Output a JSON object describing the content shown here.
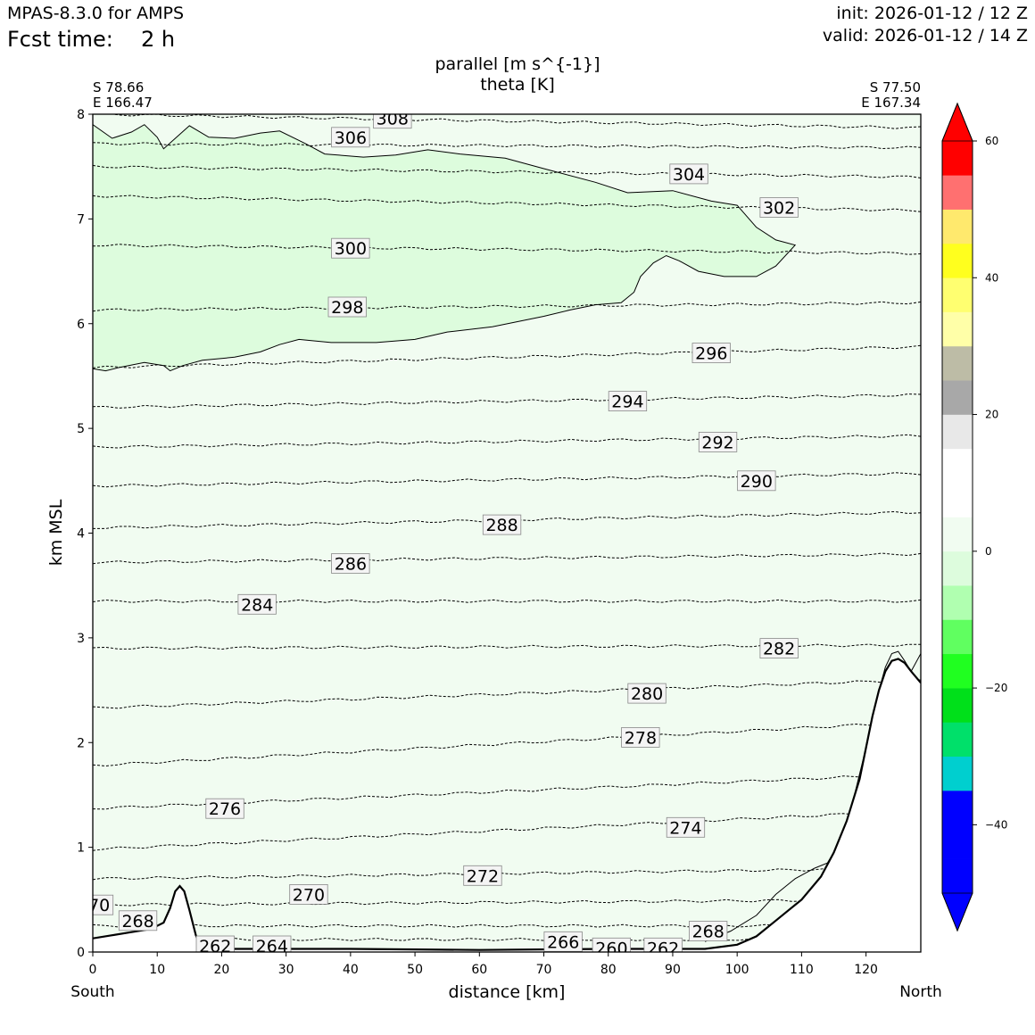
{
  "header": {
    "model": "MPAS-8.3.0 for AMPS",
    "fcst_label": "Fcst time:",
    "fcst_value": "2 h",
    "init": "init: 2026-01-12 / 12 Z",
    "valid": "valid: 2026-01-12 / 14 Z"
  },
  "chart_data": {
    "type": "contour",
    "title": "parallel [m s^{-1}]",
    "subtitle": "theta [K]",
    "xlabel": "distance [km]",
    "ylabel": "km MSL",
    "xlim": [
      0,
      128.5
    ],
    "ylim": [
      0,
      8
    ],
    "xticks": [
      0,
      10,
      20,
      30,
      40,
      50,
      60,
      70,
      80,
      90,
      100,
      110,
      120
    ],
    "yticks": [
      0,
      1,
      2,
      3,
      4,
      5,
      6,
      7,
      8
    ],
    "left_end": {
      "lat": "S 78.66",
      "lon": "E 166.47",
      "side": "South"
    },
    "right_end": {
      "lat": "S 77.50",
      "lon": "E 167.34",
      "side": "North"
    },
    "background_fill": "#f1fcf1",
    "filled_region": {
      "level": "-10 to -5",
      "color": "#ddfcdd",
      "top": [
        [
          0,
          7.9
        ],
        [
          3,
          7.77
        ],
        [
          6,
          7.83
        ],
        [
          8,
          7.9
        ],
        [
          10,
          7.78
        ],
        [
          11,
          7.67
        ],
        [
          13,
          7.78
        ],
        [
          15,
          7.89
        ],
        [
          18,
          7.78
        ],
        [
          22,
          7.77
        ],
        [
          26,
          7.82
        ],
        [
          29,
          7.84
        ],
        [
          33,
          7.72
        ],
        [
          36,
          7.62
        ],
        [
          42,
          7.59
        ],
        [
          47,
          7.61
        ],
        [
          52,
          7.66
        ],
        [
          57,
          7.62
        ],
        [
          64,
          7.58
        ],
        [
          70,
          7.48
        ],
        [
          78,
          7.35
        ],
        [
          83,
          7.25
        ],
        [
          90,
          7.27
        ],
        [
          96,
          7.17
        ],
        [
          100,
          7.13
        ],
        [
          103,
          6.92
        ],
        [
          106,
          6.8
        ],
        [
          109,
          6.75
        ]
      ],
      "bottom": [
        [
          109,
          6.75
        ],
        [
          106,
          6.55
        ],
        [
          103,
          6.45
        ],
        [
          98,
          6.45
        ],
        [
          94,
          6.5
        ],
        [
          91,
          6.6
        ],
        [
          89,
          6.65
        ],
        [
          87,
          6.58
        ],
        [
          85,
          6.45
        ],
        [
          84,
          6.3
        ],
        [
          82,
          6.2
        ],
        [
          78,
          6.18
        ],
        [
          74,
          6.13
        ],
        [
          70,
          6.07
        ],
        [
          62,
          5.97
        ],
        [
          55,
          5.92
        ],
        [
          50,
          5.85
        ],
        [
          44,
          5.82
        ],
        [
          37,
          5.82
        ],
        [
          32,
          5.85
        ],
        [
          29,
          5.8
        ],
        [
          26,
          5.73
        ],
        [
          22,
          5.68
        ],
        [
          17,
          5.65
        ],
        [
          14,
          5.6
        ],
        [
          12,
          5.55
        ],
        [
          11,
          5.6
        ],
        [
          8,
          5.63
        ],
        [
          4,
          5.58
        ],
        [
          2,
          5.55
        ],
        [
          0,
          5.57
        ]
      ]
    },
    "terrain": [
      [
        0,
        0.13
      ],
      [
        3,
        0.16
      ],
      [
        6,
        0.19
      ],
      [
        9,
        0.22
      ],
      [
        11,
        0.28
      ],
      [
        12,
        0.42
      ],
      [
        12.8,
        0.58
      ],
      [
        13.5,
        0.63
      ],
      [
        14.2,
        0.58
      ],
      [
        15,
        0.4
      ],
      [
        16,
        0.16
      ],
      [
        16.8,
        0.04
      ],
      [
        20,
        0.03
      ],
      [
        40,
        0.03
      ],
      [
        60,
        0.02
      ],
      [
        80,
        0.03
      ],
      [
        95,
        0.03
      ],
      [
        100,
        0.07
      ],
      [
        103,
        0.15
      ],
      [
        106,
        0.3
      ],
      [
        110,
        0.5
      ],
      [
        113,
        0.72
      ],
      [
        115,
        0.95
      ],
      [
        117,
        1.25
      ],
      [
        119,
        1.65
      ],
      [
        120,
        1.95
      ],
      [
        121,
        2.25
      ],
      [
        122,
        2.5
      ],
      [
        123,
        2.68
      ],
      [
        124,
        2.78
      ],
      [
        125,
        2.8
      ],
      [
        126,
        2.76
      ],
      [
        127,
        2.68
      ],
      [
        128.5,
        2.57
      ]
    ],
    "zero_contour": [
      [
        95,
        0.1
      ],
      [
        99,
        0.2
      ],
      [
        103,
        0.35
      ],
      [
        106,
        0.55
      ],
      [
        109,
        0.7
      ],
      [
        112,
        0.8
      ],
      [
        114,
        0.85
      ],
      [
        115,
        0.95
      ],
      [
        116,
        1.05
      ],
      [
        117,
        1.25
      ],
      [
        118,
        1.45
      ],
      [
        119,
        1.7
      ],
      [
        120,
        1.95
      ],
      [
        121,
        2.25
      ],
      [
        122,
        2.5
      ],
      [
        123,
        2.72
      ],
      [
        124,
        2.85
      ],
      [
        125,
        2.87
      ],
      [
        126,
        2.78
      ],
      [
        127,
        2.68
      ],
      [
        128.5,
        2.85
      ]
    ],
    "theta_contours": [
      {
        "level": 308,
        "y0": 8.0,
        "y1": 7.87,
        "label": "308",
        "lx": 46.5,
        "ly": 7.96
      },
      {
        "level": 306,
        "y0": 7.72,
        "y1": 7.68,
        "label": "306",
        "lx": 40.0,
        "ly": 7.78
      },
      {
        "level": 304,
        "y0": 7.5,
        "y1": 7.4,
        "label": "304",
        "lx": 92.5,
        "ly": 7.43
      },
      {
        "level": 302,
        "y0": 7.22,
        "y1": 7.08,
        "label": "302",
        "lx": 106.5,
        "ly": 7.11
      },
      {
        "level": 300,
        "y0": 6.75,
        "y1": 6.67,
        "label": "300",
        "lx": 40.0,
        "ly": 6.72
      },
      {
        "level": 298,
        "y0": 6.13,
        "y1": 6.2,
        "label": "298",
        "lx": 39.5,
        "ly": 6.16
      },
      {
        "level": 296,
        "y0": 5.58,
        "y1": 5.78,
        "label": "296",
        "lx": 96.0,
        "ly": 5.72
      },
      {
        "level": 294,
        "y0": 5.2,
        "y1": 5.32,
        "label": "294",
        "lx": 83.0,
        "ly": 5.26
      },
      {
        "level": 292,
        "y0": 4.82,
        "y1": 4.93,
        "label": "292",
        "lx": 97.0,
        "ly": 4.87
      },
      {
        "level": 290,
        "y0": 4.45,
        "y1": 4.57,
        "label": "290",
        "lx": 103.0,
        "ly": 4.5
      },
      {
        "level": 288,
        "y0": 4.05,
        "y1": 4.2,
        "label": "288",
        "lx": 63.5,
        "ly": 4.08
      },
      {
        "level": 286,
        "y0": 3.72,
        "y1": 3.8,
        "label": "286",
        "lx": 40.0,
        "ly": 3.71
      },
      {
        "level": 284,
        "y0": 3.35,
        "y1": 3.35,
        "label": "284",
        "lx": 25.5,
        "ly": 3.32
      },
      {
        "level": 282,
        "y0": 2.9,
        "y1": 2.93,
        "label": "282",
        "lx": 106.5,
        "ly": 2.9
      },
      {
        "level": 280,
        "y0": 2.33,
        "y1": 2.6,
        "label": "280",
        "lx": 86.0,
        "ly": 2.47
      },
      {
        "level": 278,
        "y0": 1.78,
        "y1": 2.2,
        "label": "278",
        "lx": 85.0,
        "ly": 2.05
      },
      {
        "level": 276,
        "y0": 1.37,
        "y1": 1.7,
        "label": "276",
        "lx": 20.5,
        "ly": 1.37
      },
      {
        "level": 274,
        "y0": 0.98,
        "y1": 1.35,
        "label": "274",
        "lx": 92.0,
        "ly": 1.19
      },
      {
        "level": 272,
        "y0": 0.7,
        "y1": 0.8,
        "label": "272",
        "lx": 60.5,
        "ly": 0.73
      },
      {
        "level": 270,
        "y0": 0.45,
        "y1": 0.5,
        "label": "270",
        "lx": 33.5,
        "ly": 0.55
      },
      {
        "level": 268,
        "y0": 0.25,
        "y1": 0.25,
        "label": "268",
        "lx": 7.0,
        "ly": 0.3
      },
      {
        "level": 266,
        "y0": 0.12,
        "y1": 0.12,
        "label": "266",
        "lx": 73.0,
        "ly": 0.1
      }
    ],
    "extra_labels": [
      {
        "text": "70",
        "x": 1.0,
        "y": 0.45
      },
      {
        "text": "268",
        "x": 95.5,
        "y": 0.2
      },
      {
        "text": "262",
        "x": 19.0,
        "y": 0.06
      },
      {
        "text": "264",
        "x": 27.8,
        "y": 0.06
      },
      {
        "text": "260",
        "x": 80.5,
        "y": 0.04
      },
      {
        "text": "262",
        "x": 88.5,
        "y": 0.04
      }
    ],
    "colorbar": {
      "colors": [
        "#0000ff",
        "#0000ff",
        "#0000ff",
        "#00cfcf",
        "#00e06a",
        "#00e01a",
        "#20ff20",
        "#60ff60",
        "#b0ffb0",
        "#ddfcdd",
        "#f1fcf1",
        "#ffffff",
        "#ffffff",
        "#e8e8e8",
        "#a8a8a8",
        "#bdbca6",
        "#ffffa8",
        "#ffff70",
        "#ffff1e",
        "#ffe96d",
        "#ff7070",
        "#ff0000"
      ],
      "top_arrow": "#ff0000",
      "bottom_arrow": "#0000ff",
      "ticks": [
        60,
        40,
        20,
        0,
        -20,
        -40
      ],
      "tick_labels": [
        "60",
        "40",
        "20",
        "0",
        "−20",
        "−40"
      ]
    }
  }
}
